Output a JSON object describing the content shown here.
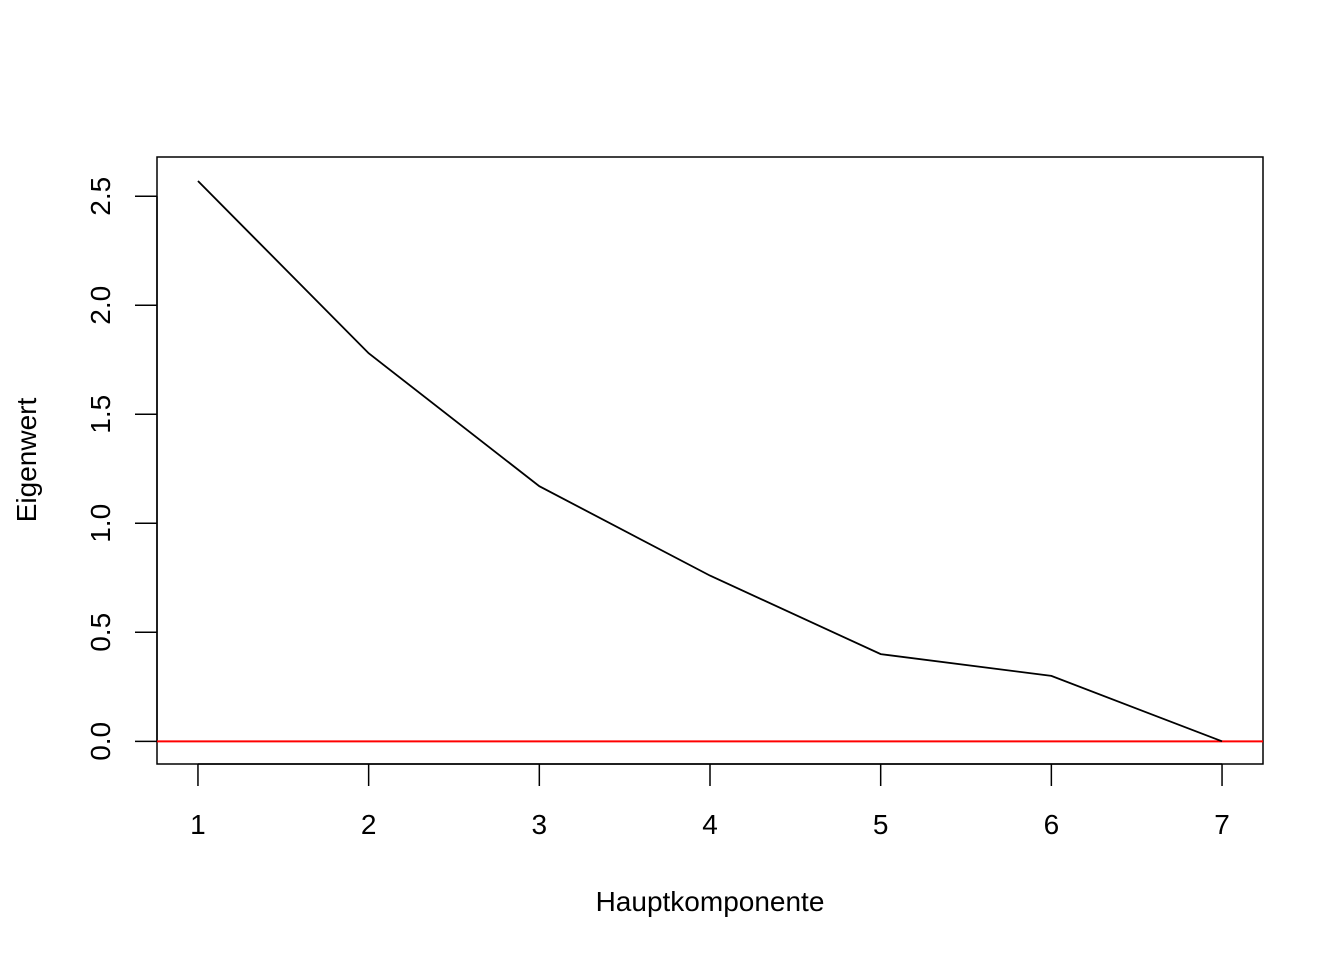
{
  "chart_data": {
    "type": "line",
    "title": "",
    "xlabel": "Hauptkomponente",
    "ylabel": "Eigenwert",
    "x": [
      1,
      2,
      3,
      4,
      5,
      6,
      7
    ],
    "series": [
      {
        "values": [
          2.57,
          1.78,
          1.17,
          0.76,
          0.4,
          0.3,
          0.0
        ],
        "color": "#000000"
      }
    ],
    "xlim": [
      0.76,
      7.24
    ],
    "ylim": [
      -0.104,
      2.68
    ],
    "xticks": [
      "1",
      "2",
      "3",
      "4",
      "5",
      "6",
      "7"
    ],
    "yticks": [
      "0.0",
      "0.5",
      "1.0",
      "1.5",
      "2.0",
      "2.5"
    ],
    "reference_line": {
      "y": 0,
      "color": "#ff0000"
    },
    "grid": false,
    "legend": "none"
  }
}
